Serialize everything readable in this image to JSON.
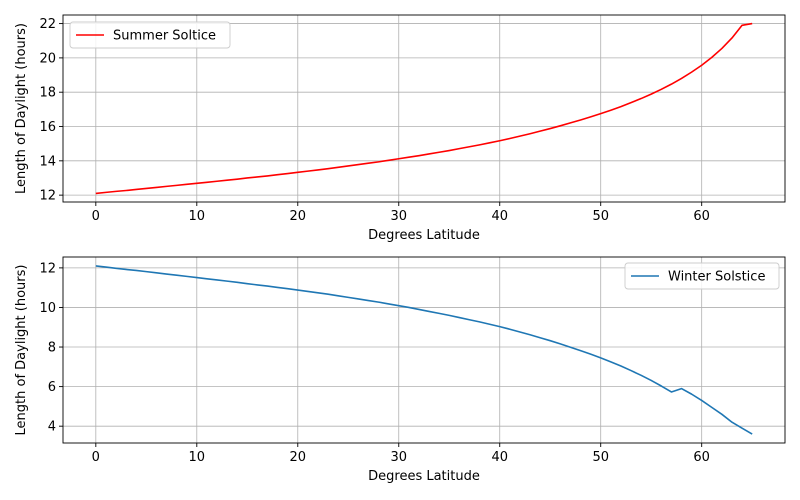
{
  "chart_data": [
    {
      "type": "line",
      "xlabel": "Degrees Latitude",
      "ylabel": "Length of Daylight (hours)",
      "xlim": [
        -3.25,
        68.25
      ],
      "ylim": [
        11.6,
        22.5
      ],
      "xticks": [
        0,
        10,
        20,
        30,
        40,
        50,
        60
      ],
      "yticks": [
        12,
        14,
        16,
        18,
        20,
        22
      ],
      "grid": true,
      "legend_position": "upper-left",
      "series": [
        {
          "name": "Summer Soltice",
          "color": "#ff0000",
          "x": [
            0,
            1,
            2,
            3,
            4,
            5,
            6,
            7,
            8,
            9,
            10,
            11,
            12,
            13,
            14,
            15,
            16,
            17,
            18,
            19,
            20,
            21,
            22,
            23,
            24,
            25,
            26,
            27,
            28,
            29,
            30,
            31,
            32,
            33,
            34,
            35,
            36,
            37,
            38,
            39,
            40,
            41,
            42,
            43,
            44,
            45,
            46,
            47,
            48,
            49,
            50,
            51,
            52,
            53,
            54,
            55,
            56,
            57,
            58,
            59,
            60,
            61,
            62,
            63,
            64,
            65
          ],
          "y": [
            12.1,
            12.16,
            12.22,
            12.27,
            12.33,
            12.39,
            12.45,
            12.51,
            12.57,
            12.63,
            12.69,
            12.75,
            12.81,
            12.87,
            12.93,
            13.0,
            13.06,
            13.12,
            13.19,
            13.26,
            13.33,
            13.4,
            13.47,
            13.54,
            13.62,
            13.7,
            13.78,
            13.86,
            13.94,
            14.03,
            14.12,
            14.21,
            14.3,
            14.4,
            14.5,
            14.6,
            14.71,
            14.82,
            14.93,
            15.05,
            15.17,
            15.3,
            15.44,
            15.58,
            15.73,
            15.88,
            16.04,
            16.21,
            16.38,
            16.56,
            16.75,
            16.95,
            17.16,
            17.39,
            17.63,
            17.89,
            18.17,
            18.47,
            18.8,
            19.17,
            19.57,
            20.03,
            20.55,
            21.16,
            21.9,
            22.0
          ]
        }
      ]
    },
    {
      "type": "line",
      "xlabel": "Degrees Latitude",
      "ylabel": "Length of Daylight (hours)",
      "xlim": [
        -3.25,
        68.25
      ],
      "ylim": [
        3.15,
        12.55
      ],
      "xticks": [
        0,
        10,
        20,
        30,
        40,
        50,
        60
      ],
      "yticks": [
        4,
        6,
        8,
        10,
        12
      ],
      "grid": true,
      "legend_position": "upper-right",
      "series": [
        {
          "name": "Winter Solstice",
          "color": "#1f77b4",
          "x": [
            0,
            1,
            2,
            3,
            4,
            5,
            6,
            7,
            8,
            9,
            10,
            11,
            12,
            13,
            14,
            15,
            16,
            17,
            18,
            19,
            20,
            21,
            22,
            23,
            24,
            25,
            26,
            27,
            28,
            29,
            30,
            31,
            32,
            33,
            34,
            35,
            36,
            37,
            38,
            39,
            40,
            41,
            42,
            43,
            44,
            45,
            46,
            47,
            48,
            49,
            50,
            51,
            52,
            53,
            54,
            55,
            56,
            57,
            58,
            59,
            60,
            61,
            62,
            63,
            64,
            65
          ],
          "y": [
            12.1,
            12.04,
            11.98,
            11.92,
            11.87,
            11.81,
            11.75,
            11.69,
            11.63,
            11.57,
            11.51,
            11.45,
            11.39,
            11.33,
            11.27,
            11.2,
            11.14,
            11.08,
            11.01,
            10.95,
            10.88,
            10.81,
            10.74,
            10.67,
            10.59,
            10.51,
            10.43,
            10.35,
            10.27,
            10.18,
            10.09,
            10.0,
            9.9,
            9.8,
            9.7,
            9.6,
            9.49,
            9.38,
            9.27,
            9.15,
            9.03,
            8.9,
            8.76,
            8.62,
            8.47,
            8.32,
            8.16,
            7.99,
            7.82,
            7.64,
            7.45,
            7.25,
            7.04,
            6.81,
            6.57,
            6.31,
            6.03,
            5.73,
            5.4,
            5.03,
            4.62,
            4.15,
            3.62,
            3.6,
            3.6,
            3.6
          ]
        }
      ]
    }
  ]
}
